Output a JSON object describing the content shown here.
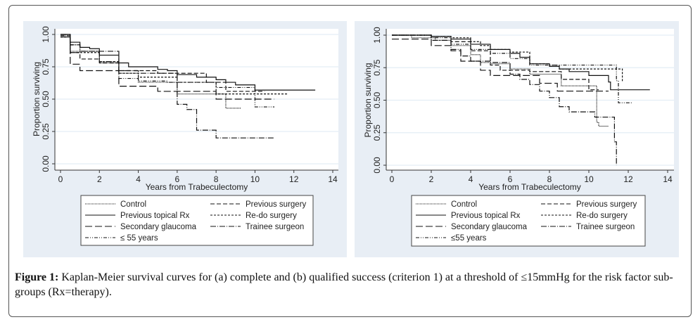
{
  "figure": {
    "caption_label": "Figure 1:",
    "caption_text": " Kaplan-Meier survival curves for (a) complete and (b) qualified success (criterion 1) at a threshold of ≤15mmHg for the risk factor sub-groups (Rx=therapy)."
  },
  "chart_data": [
    {
      "type": "line",
      "step": true,
      "panel": "a",
      "title": "",
      "xlabel": "Years from Trabeculectomy",
      "ylabel": "Proportion surviving",
      "xlim": [
        0,
        14
      ],
      "ylim": [
        0,
        1
      ],
      "xticks": [
        "0",
        "2",
        "4",
        "6",
        "8",
        "10",
        "12",
        "14"
      ],
      "yticks": [
        "0.00",
        "0.25",
        "0.50",
        "0.75",
        "1.00"
      ],
      "grid": true,
      "legend_position": "bottom",
      "series": [
        {
          "name": "Control",
          "style": "dotted",
          "points": [
            [
              0,
              1.0
            ],
            [
              0.5,
              0.87
            ],
            [
              2,
              0.78
            ],
            [
              3,
              0.7
            ],
            [
              4,
              0.63
            ],
            [
              6,
              0.54
            ],
            [
              8.5,
              0.43
            ],
            [
              9.3,
              0.43
            ]
          ]
        },
        {
          "name": "Previous surgery",
          "style": "dashed",
          "points": [
            [
              0,
              0.99
            ],
            [
              0.5,
              0.86
            ],
            [
              1,
              0.81
            ],
            [
              2,
              0.78
            ],
            [
              3,
              0.72
            ],
            [
              5,
              0.7
            ],
            [
              7.5,
              0.63
            ],
            [
              8.5,
              0.56
            ],
            [
              10.5,
              0.56
            ]
          ]
        },
        {
          "name": "Previous topical Rx",
          "style": "solid",
          "points": [
            [
              0,
              1.0
            ],
            [
              0.5,
              0.94
            ],
            [
              1,
              0.9
            ],
            [
              1.5,
              0.89
            ],
            [
              2,
              0.84
            ],
            [
              3,
              0.78
            ],
            [
              3.5,
              0.75
            ],
            [
              5,
              0.73
            ],
            [
              5.5,
              0.72
            ],
            [
              6,
              0.69
            ],
            [
              7,
              0.67
            ],
            [
              8,
              0.65
            ],
            [
              8.5,
              0.63
            ],
            [
              9,
              0.61
            ],
            [
              10,
              0.57
            ],
            [
              13.1,
              0.57
            ]
          ]
        },
        {
          "name": "Re-do surgery",
          "style": "short-dash",
          "points": [
            [
              0,
              0.98
            ],
            [
              0.5,
              0.86
            ],
            [
              2,
              0.79
            ],
            [
              3,
              0.7
            ],
            [
              4,
              0.67
            ],
            [
              6,
              0.63
            ],
            [
              8,
              0.54
            ],
            [
              11.7,
              0.54
            ]
          ]
        },
        {
          "name": "Secondary glaucoma",
          "style": "long-dash",
          "points": [
            [
              0,
              0.98
            ],
            [
              0.5,
              0.77
            ],
            [
              1,
              0.72
            ],
            [
              3,
              0.6
            ],
            [
              5,
              0.56
            ],
            [
              6,
              0.56
            ],
            [
              8,
              0.5
            ],
            [
              11,
              0.5
            ]
          ]
        },
        {
          "name": "Trainee surgeon",
          "style": "dash-dot",
          "points": [
            [
              0,
              1.0
            ],
            [
              0.5,
              0.92
            ],
            [
              1,
              0.87
            ],
            [
              3,
              0.72
            ],
            [
              4,
              0.7
            ],
            [
              6,
              0.46
            ],
            [
              6.5,
              0.42
            ],
            [
              7,
              0.26
            ],
            [
              8,
              0.2
            ],
            [
              11,
              0.2
            ]
          ]
        },
        {
          "name": "≤ 55 years",
          "style": "dash-dot-dot",
          "points": [
            [
              0,
              0.99
            ],
            [
              0.5,
              0.92
            ],
            [
              1,
              0.87
            ],
            [
              2,
              0.79
            ],
            [
              3,
              0.66
            ],
            [
              4,
              0.64
            ],
            [
              5.5,
              0.63
            ],
            [
              8,
              0.59
            ],
            [
              10,
              0.44
            ],
            [
              11,
              0.44
            ]
          ]
        }
      ]
    },
    {
      "type": "line",
      "step": true,
      "panel": "b",
      "title": "",
      "xlabel": "Years from Trabeculectomy",
      "ylabel": "Proportion surviving",
      "xlim": [
        0,
        14
      ],
      "ylim": [
        0,
        1
      ],
      "xticks": [
        "0",
        "2",
        "4",
        "6",
        "8",
        "10",
        "12",
        "14"
      ],
      "yticks": [
        "0.00",
        "0.25",
        "0.50",
        "0.75",
        "1.00"
      ],
      "grid": true,
      "legend_position": "bottom",
      "series": [
        {
          "name": "Control",
          "style": "dotted",
          "points": [
            [
              0,
              1.0
            ],
            [
              1,
              0.98
            ],
            [
              2.2,
              0.96
            ],
            [
              3,
              0.92
            ],
            [
              4,
              0.85
            ],
            [
              4.5,
              0.79
            ],
            [
              5,
              0.78
            ],
            [
              6,
              0.74
            ],
            [
              7,
              0.7
            ],
            [
              8.6,
              0.61
            ],
            [
              10.4,
              0.33
            ],
            [
              10.5,
              0.3
            ],
            [
              11,
              0.3
            ]
          ]
        },
        {
          "name": "Previous surgery",
          "style": "dashed",
          "points": [
            [
              0,
              1.0
            ],
            [
              2,
              0.99
            ],
            [
              3,
              0.95
            ],
            [
              4,
              0.88
            ],
            [
              5,
              0.77
            ],
            [
              5.5,
              0.73
            ],
            [
              7,
              0.72
            ],
            [
              8.6,
              0.66
            ],
            [
              10,
              0.58
            ],
            [
              10.5,
              0.58
            ]
          ]
        },
        {
          "name": "Previous topical Rx",
          "style": "solid",
          "points": [
            [
              0,
              1.0
            ],
            [
              2,
              0.99
            ],
            [
              3,
              0.97
            ],
            [
              4,
              0.93
            ],
            [
              5,
              0.89
            ],
            [
              6,
              0.86
            ],
            [
              6.5,
              0.83
            ],
            [
              7,
              0.78
            ],
            [
              8,
              0.76
            ],
            [
              8.5,
              0.74
            ],
            [
              9,
              0.72
            ],
            [
              10,
              0.69
            ],
            [
              11,
              0.64
            ],
            [
              11.1,
              0.58
            ],
            [
              13.1,
              0.58
            ]
          ]
        },
        {
          "name": "Re-do surgery",
          "style": "short-dash",
          "points": [
            [
              0,
              1.0
            ],
            [
              2,
              0.99
            ],
            [
              3,
              0.98
            ],
            [
              4,
              0.95
            ],
            [
              4.5,
              0.92
            ],
            [
              5,
              0.89
            ],
            [
              6,
              0.87
            ],
            [
              7,
              0.78
            ],
            [
              8,
              0.77
            ],
            [
              8.5,
              0.74
            ],
            [
              11,
              0.74
            ],
            [
              11.7,
              0.64
            ]
          ]
        },
        {
          "name": "Secondary glaucoma",
          "style": "long-dash",
          "points": [
            [
              0,
              0.97
            ],
            [
              1,
              0.97
            ],
            [
              2,
              0.92
            ],
            [
              3,
              0.88
            ],
            [
              3.5,
              0.8
            ],
            [
              4.5,
              0.73
            ],
            [
              5,
              0.69
            ],
            [
              6,
              0.69
            ],
            [
              7.5,
              0.63
            ],
            [
              8.4,
              0.57
            ],
            [
              11,
              0.57
            ]
          ]
        },
        {
          "name": "Trainee surgeon",
          "style": "dash-dot",
          "points": [
            [
              0,
              1.0
            ],
            [
              2,
              0.96
            ],
            [
              3,
              0.89
            ],
            [
              3.5,
              0.84
            ],
            [
              4,
              0.8
            ],
            [
              5,
              0.79
            ],
            [
              6,
              0.7
            ],
            [
              6.5,
              0.66
            ],
            [
              7,
              0.62
            ],
            [
              7.5,
              0.57
            ],
            [
              8,
              0.52
            ],
            [
              8.5,
              0.45
            ],
            [
              9,
              0.41
            ],
            [
              10.3,
              0.37
            ],
            [
              11.3,
              0.18
            ],
            [
              11.4,
              0.0
            ]
          ]
        },
        {
          "name": "≤55 years",
          "style": "dash-dot-dot",
          "points": [
            [
              0,
              1.0
            ],
            [
              2,
              0.98
            ],
            [
              3,
              0.93
            ],
            [
              4,
              0.89
            ],
            [
              5,
              0.86
            ],
            [
              6,
              0.82
            ],
            [
              7,
              0.77
            ],
            [
              8,
              0.77
            ],
            [
              11,
              0.77
            ],
            [
              11.4,
              0.65
            ],
            [
              11.5,
              0.48
            ],
            [
              12.2,
              0.48
            ]
          ]
        }
      ]
    }
  ]
}
